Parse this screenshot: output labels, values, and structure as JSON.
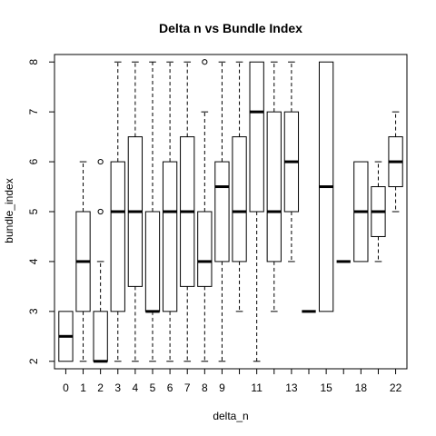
{
  "chart_data": {
    "type": "boxplot",
    "title": "Delta n vs Bundle Index",
    "xlabel": "delta_n",
    "ylabel": "bundle_index",
    "ylim": [
      1.85,
      8.15
    ],
    "yticks": [
      "2",
      "3",
      "4",
      "5",
      "6",
      "7",
      "8"
    ],
    "categories": [
      "0",
      "1",
      "2",
      "3",
      "4",
      "5",
      "6",
      "7",
      "8",
      "9",
      "10",
      "11",
      "12",
      "13",
      "14",
      "15",
      "16",
      "18",
      "20",
      "22"
    ],
    "xtick_labels": [
      "0",
      "1",
      "2",
      "3",
      "4",
      "5",
      "6",
      "7",
      "8",
      "9",
      "11",
      "13",
      "15",
      "18",
      "22"
    ],
    "boxes": [
      {
        "cat": "0",
        "whislo": 2,
        "q1": 2,
        "med": 2.5,
        "q3": 3,
        "whishi": 3,
        "outliers": []
      },
      {
        "cat": "1",
        "whislo": 2,
        "q1": 3,
        "med": 4,
        "q3": 5,
        "whishi": 6,
        "outliers": []
      },
      {
        "cat": "2",
        "whislo": 2,
        "q1": 2,
        "med": 2,
        "q3": 3,
        "whishi": 4,
        "outliers": [
          5,
          6
        ]
      },
      {
        "cat": "3",
        "whislo": 2,
        "q1": 3,
        "med": 5,
        "q3": 6,
        "whishi": 8,
        "outliers": []
      },
      {
        "cat": "4",
        "whislo": 2,
        "q1": 3.5,
        "med": 5,
        "q3": 6.5,
        "whishi": 8,
        "outliers": []
      },
      {
        "cat": "5",
        "whislo": 2,
        "q1": 3,
        "med": 3,
        "q3": 5,
        "whishi": 8,
        "outliers": []
      },
      {
        "cat": "6",
        "whislo": 2,
        "q1": 3,
        "med": 5,
        "q3": 6,
        "whishi": 8,
        "outliers": []
      },
      {
        "cat": "7",
        "whislo": 2,
        "q1": 3.5,
        "med": 5,
        "q3": 6.5,
        "whishi": 8,
        "outliers": []
      },
      {
        "cat": "8",
        "whislo": 2,
        "q1": 3.5,
        "med": 4,
        "q3": 5,
        "whishi": 7,
        "outliers": [
          8
        ]
      },
      {
        "cat": "9",
        "whislo": 2,
        "q1": 4,
        "med": 5.5,
        "q3": 6,
        "whishi": 8,
        "outliers": []
      },
      {
        "cat": "10",
        "whislo": 3,
        "q1": 4,
        "med": 5,
        "q3": 6.5,
        "whishi": 8,
        "outliers": []
      },
      {
        "cat": "11",
        "whislo": 2,
        "q1": 5,
        "med": 7,
        "q3": 8,
        "whishi": 8,
        "outliers": []
      },
      {
        "cat": "12",
        "whislo": 3,
        "q1": 4,
        "med": 5,
        "q3": 7,
        "whishi": 8,
        "outliers": []
      },
      {
        "cat": "13",
        "whislo": 4,
        "q1": 5,
        "med": 6,
        "q3": 7,
        "whishi": 8,
        "outliers": []
      },
      {
        "cat": "14",
        "whislo": 3,
        "q1": 3,
        "med": 3,
        "q3": 3,
        "whishi": 3,
        "outliers": []
      },
      {
        "cat": "15",
        "whislo": 3,
        "q1": 3,
        "med": 5.5,
        "q3": 8,
        "whishi": 8,
        "outliers": []
      },
      {
        "cat": "16",
        "whislo": 4,
        "q1": 4,
        "med": 4,
        "q3": 4,
        "whishi": 4,
        "outliers": []
      },
      {
        "cat": "18",
        "whislo": 4,
        "q1": 4,
        "med": 5,
        "q3": 6,
        "whishi": 6,
        "outliers": []
      },
      {
        "cat": "20",
        "whislo": 4,
        "q1": 4.5,
        "med": 5,
        "q3": 5.5,
        "whishi": 6,
        "outliers": []
      },
      {
        "cat": "22",
        "whislo": 5,
        "q1": 5.5,
        "med": 6,
        "q3": 6.5,
        "whishi": 7,
        "outliers": []
      }
    ],
    "grid": false,
    "legend": "none"
  }
}
